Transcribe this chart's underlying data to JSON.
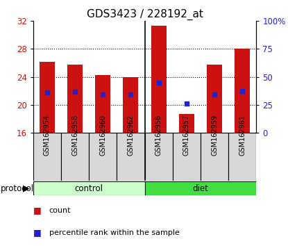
{
  "title": "GDS3423 / 228192_at",
  "samples": [
    "GSM162954",
    "GSM162958",
    "GSM162960",
    "GSM162962",
    "GSM162956",
    "GSM162957",
    "GSM162959",
    "GSM162961"
  ],
  "bar_tops": [
    26.1,
    25.8,
    24.3,
    24.0,
    31.3,
    18.7,
    25.8,
    28.0
  ],
  "percentile_values": [
    21.8,
    21.9,
    21.5,
    21.5,
    23.2,
    20.2,
    21.5,
    22.0
  ],
  "bar_baseline": 16,
  "ylim": [
    16,
    32
  ],
  "yticks_left": [
    16,
    20,
    24,
    28,
    32
  ],
  "yticks_right_labels": [
    "0",
    "25",
    "50",
    "75",
    "100%"
  ],
  "yticks_right_vals": [
    16,
    20,
    24,
    28,
    32
  ],
  "bar_color": "#cc1111",
  "percentile_color": "#2222cc",
  "control_label": "control",
  "diet_label": "diet",
  "control_color": "#ccffcc",
  "diet_color": "#44dd44",
  "protocol_label": "protocol",
  "legend_count": "count",
  "legend_percentile": "percentile rank within the sample",
  "title_fontsize": 11,
  "tick_fontsize": 8.5,
  "sample_label_fontsize": 7.0,
  "gridline_yticks": [
    20,
    24,
    28
  ]
}
